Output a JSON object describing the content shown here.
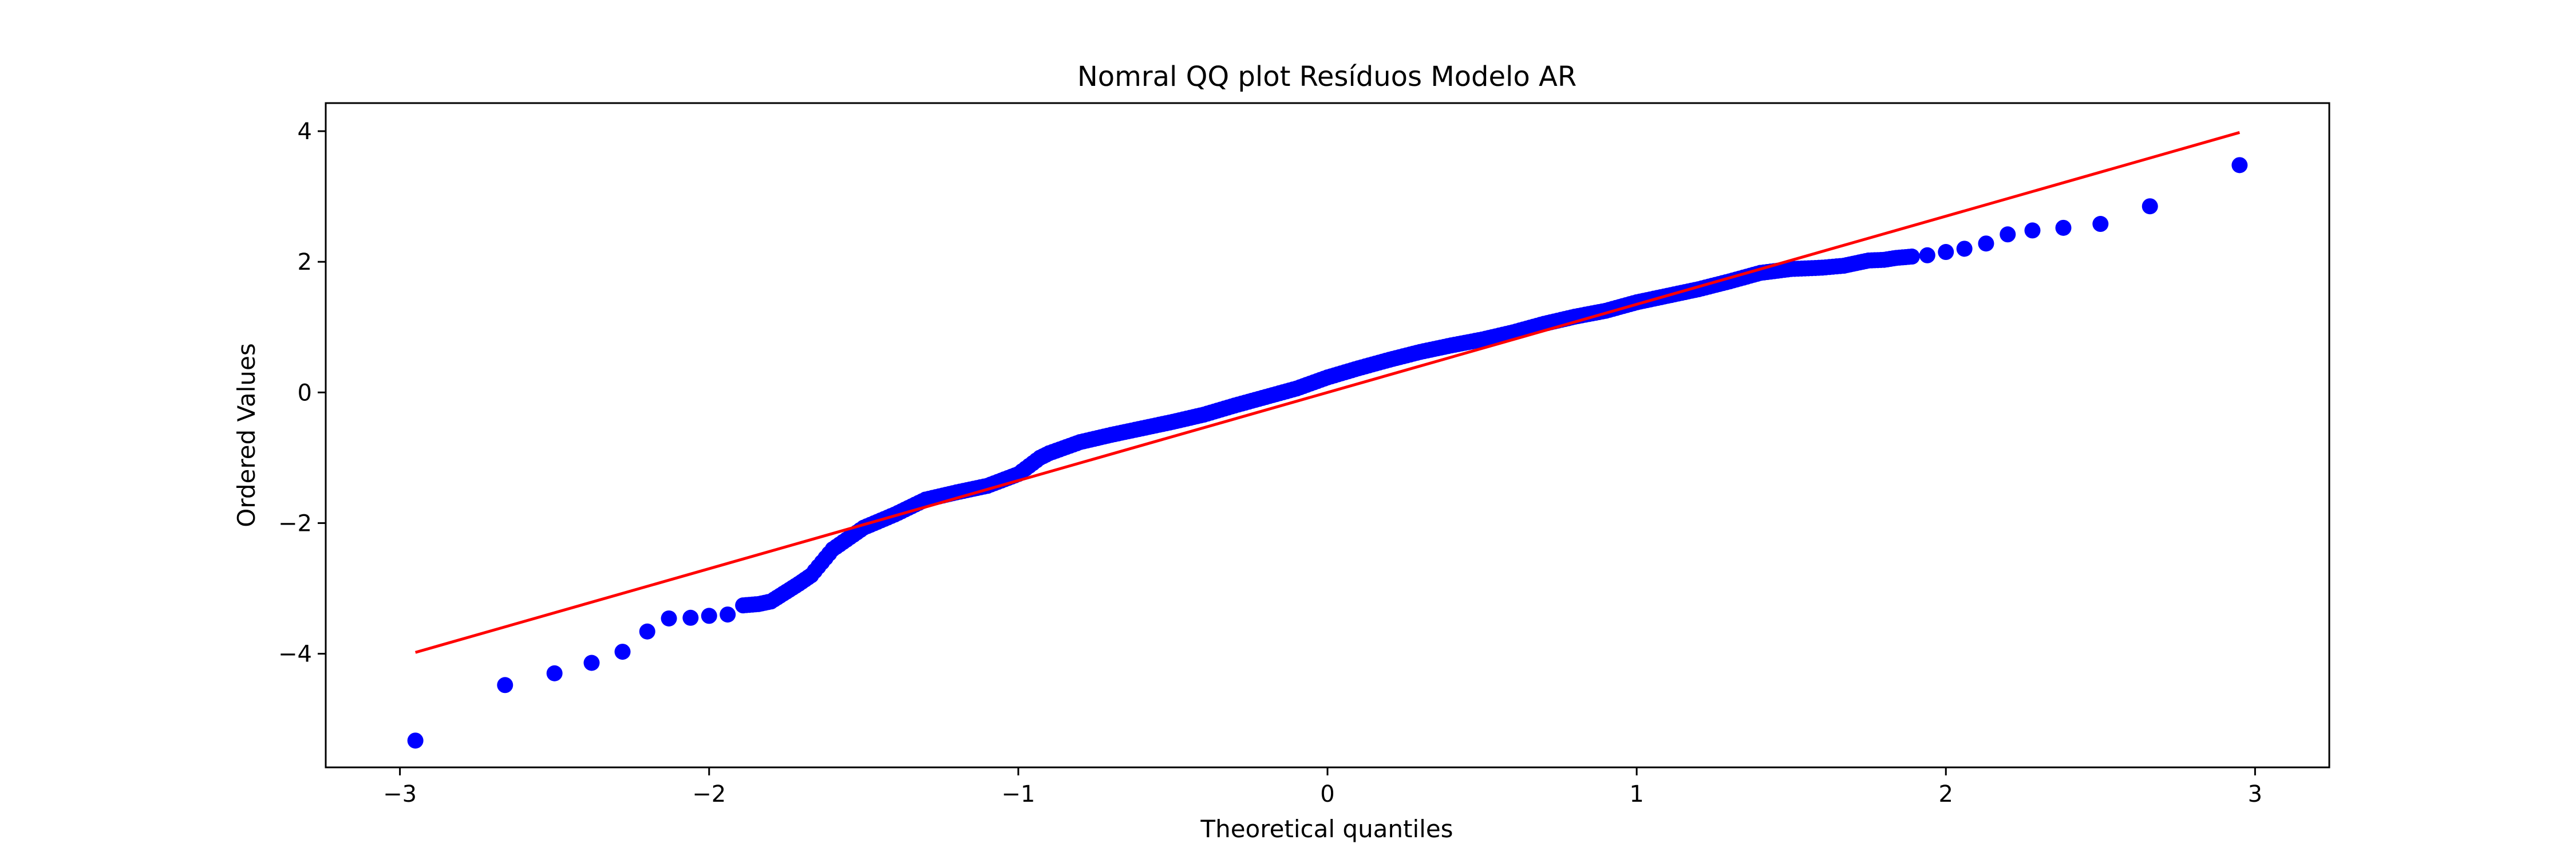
{
  "chart_data": {
    "type": "scatter",
    "title": "Nomral QQ plot Resíduos Modelo AR",
    "xlabel": "Theoretical quantiles",
    "ylabel": "Ordered Values",
    "xlim": [
      -3.24,
      3.24
    ],
    "ylim": [
      -5.74,
      4.43
    ],
    "xticks": [
      -3,
      -2,
      -1,
      0,
      1,
      2,
      3
    ],
    "xtick_labels": [
      "−3",
      "−2",
      "−1",
      "0",
      "1",
      "2",
      "3"
    ],
    "yticks": [
      -4,
      -2,
      0,
      2,
      4
    ],
    "ytick_labels": [
      "−4",
      "−2",
      "0",
      "2",
      "4"
    ],
    "grid": false,
    "legend": "none",
    "colors": {
      "points": "#0000ff",
      "fit_line": "#ff0000"
    },
    "fit_line": {
      "x": [
        -2.95,
        2.95
      ],
      "y": [
        -3.98,
        3.98
      ]
    },
    "series": [
      {
        "x": [
          -2.95,
          -2.66,
          -2.5,
          -2.38,
          -2.28,
          -2.2,
          -2.13,
          -2.06,
          -2.0,
          -1.94,
          -1.89,
          -1.84,
          -1.8,
          -1.75,
          -1.71,
          -1.67,
          -1.6,
          -1.5,
          -1.4,
          -1.3,
          -1.2,
          -1.1,
          -1.0,
          -0.93,
          -0.9,
          -0.8,
          -0.7,
          -0.6,
          -0.5,
          -0.4,
          -0.3,
          -0.2,
          -0.1,
          0.0,
          0.1,
          0.2,
          0.3,
          0.4,
          0.5,
          0.6,
          0.7,
          0.8,
          0.9,
          1.0,
          1.1,
          1.2,
          1.3,
          1.4,
          1.5,
          1.6,
          1.67,
          1.71,
          1.75,
          1.8,
          1.84,
          1.89,
          1.94,
          2.0,
          2.06,
          2.13,
          2.2,
          2.28,
          2.38,
          2.5,
          2.66,
          2.95
        ],
        "y": [
          -5.33,
          -4.48,
          -4.3,
          -4.14,
          -3.97,
          -3.66,
          -3.46,
          -3.45,
          -3.42,
          -3.4,
          -3.26,
          -3.24,
          -3.2,
          -3.05,
          -2.93,
          -2.8,
          -2.4,
          -2.07,
          -1.87,
          -1.64,
          -1.53,
          -1.43,
          -1.25,
          -1.0,
          -0.93,
          -0.76,
          -0.65,
          -0.55,
          -0.45,
          -0.34,
          -0.2,
          -0.07,
          0.06,
          0.23,
          0.37,
          0.5,
          0.62,
          0.72,
          0.81,
          0.92,
          1.05,
          1.16,
          1.25,
          1.38,
          1.48,
          1.58,
          1.7,
          1.83,
          1.89,
          1.91,
          1.94,
          1.98,
          2.02,
          2.03,
          2.06,
          2.08,
          2.1,
          2.15,
          2.2,
          2.28,
          2.42,
          2.48,
          2.52,
          2.58,
          2.85,
          3.48
        ]
      }
    ]
  }
}
